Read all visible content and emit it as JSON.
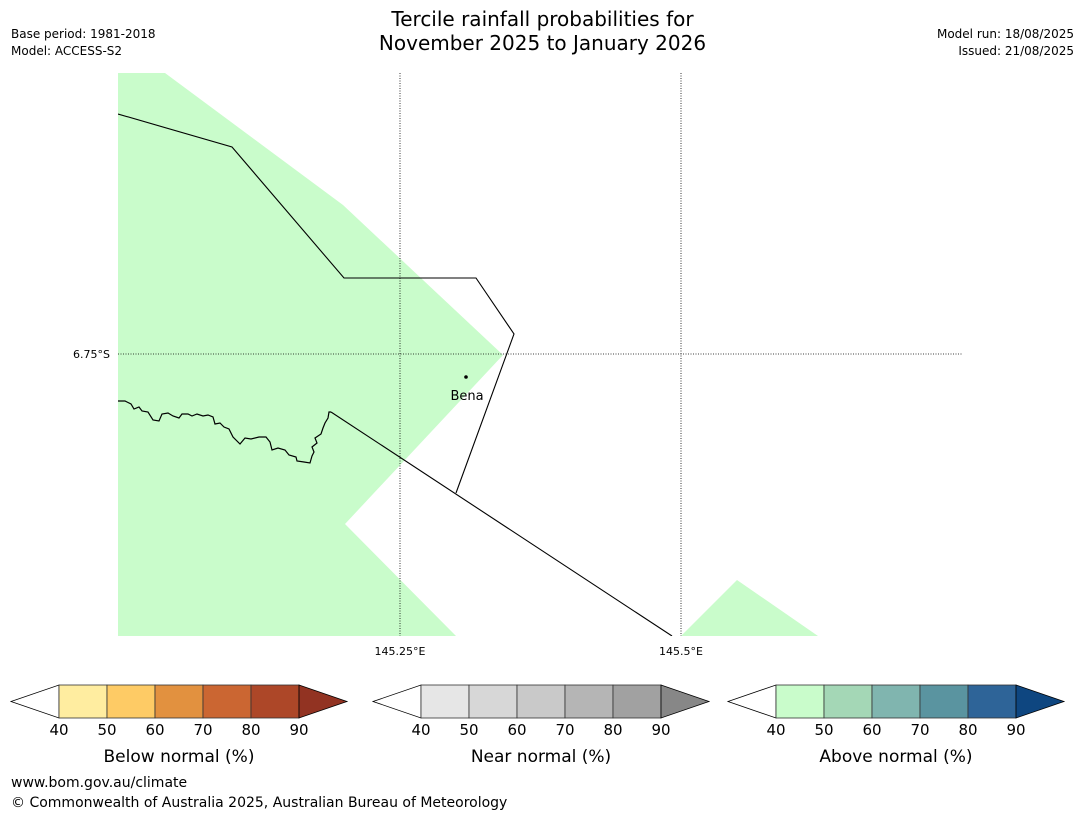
{
  "header": {
    "title_line1": "Tercile rainfall probabilities for",
    "title_line2": "November 2025 to January 2026",
    "base_period": "Base period: 1981-2018",
    "model": "Model: ACCESS-S2",
    "model_run": "Model run: 18/08/2025",
    "issued": "Issued: 21/08/2025"
  },
  "map": {
    "lat_label": "6.75°S",
    "lon_labels": [
      "145.25°E",
      "145.5°E"
    ],
    "place_label": "Bena",
    "fill_color": "#c9fccb"
  },
  "legends": [
    {
      "title": "Below normal (%)",
      "ticks": [
        "40",
        "50",
        "60",
        "70",
        "80",
        "90"
      ],
      "colors": [
        "#ffeda0",
        "#fecb65",
        "#e2913f",
        "#cb6632",
        "#ad4728",
        "#923322"
      ]
    },
    {
      "title": "Near normal (%)",
      "ticks": [
        "40",
        "50",
        "60",
        "70",
        "80",
        "90"
      ],
      "colors": [
        "#e6e6e6",
        "#d7d7d7",
        "#c9c9c9",
        "#b5b5b5",
        "#a1a1a1",
        "#878787"
      ]
    },
    {
      "title": "Above normal (%)",
      "ticks": [
        "40",
        "50",
        "60",
        "70",
        "80",
        "90"
      ],
      "colors": [
        "#c9fccb",
        "#a4d7b6",
        "#80b5af",
        "#5a94a0",
        "#2e6498",
        "#0e4680"
      ]
    }
  ],
  "footer": {
    "url": "www.bom.gov.au/climate",
    "copyright": "© Commonwealth of Australia 2025, Australian Bureau of Meteorology"
  }
}
